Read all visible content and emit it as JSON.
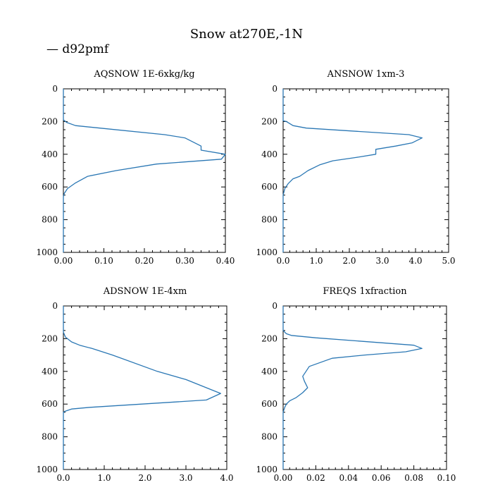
{
  "figure": {
    "title": "Snow at270E,-1N",
    "legend": [
      {
        "label": "— d92pmf",
        "color": "#2a77b4"
      }
    ]
  },
  "chart_data": [
    {
      "type": "line",
      "title": "AQSNOW  1E-6xkg/kg",
      "xlim": [
        0,
        0.4
      ],
      "ylim": [
        0,
        1000
      ],
      "y_inverted": true,
      "xticks": [
        0,
        0.1,
        0.2,
        0.3,
        0.4
      ],
      "xtick_labels": [
        "0.00",
        "0.10",
        "0.20",
        "0.30",
        "0.40"
      ],
      "yticks": [
        0,
        200,
        400,
        600,
        800,
        1000
      ],
      "ytick_labels": [
        "0",
        "200",
        "400",
        "600",
        "800",
        "1000"
      ],
      "series": [
        {
          "name": "d92pmf",
          "color": "#2a77b4",
          "x": [
            0,
            0,
            0.003,
            0.008,
            0.03,
            0.09,
            0.25,
            0.3,
            0.34,
            0.34,
            0.4,
            0.39,
            0.23,
            0.13,
            0.06,
            0.03,
            0.01,
            0.002,
            0,
            0
          ],
          "y": [
            0,
            190,
            195,
            205,
            225,
            240,
            280,
            300,
            350,
            375,
            400,
            430,
            460,
            500,
            535,
            575,
            610,
            640,
            660,
            1000
          ]
        }
      ]
    },
    {
      "type": "line",
      "title": "ANSNOW  1xm-3",
      "xlim": [
        0,
        5
      ],
      "ylim": [
        0,
        1000
      ],
      "y_inverted": true,
      "xticks": [
        0,
        1,
        2,
        3,
        4,
        5
      ],
      "xtick_labels": [
        "0.0",
        "1.0",
        "2.0",
        "3.0",
        "4.0",
        "5.0"
      ],
      "yticks": [
        0,
        200,
        400,
        600,
        800,
        1000
      ],
      "ytick_labels": [
        "0",
        "200",
        "400",
        "600",
        "800",
        "1000"
      ],
      "series": [
        {
          "name": "d92pmf",
          "color": "#2a77b4",
          "x": [
            0,
            0,
            0.1,
            0.3,
            0.7,
            3.8,
            4.2,
            3.9,
            3.4,
            2.8,
            2.8,
            2.2,
            1.5,
            1.1,
            0.75,
            0.5,
            0.3,
            0.15,
            0.05,
            0,
            0
          ],
          "y": [
            0,
            195,
            200,
            225,
            240,
            280,
            300,
            330,
            350,
            370,
            400,
            420,
            440,
            465,
            500,
            535,
            550,
            580,
            610,
            650,
            1000
          ]
        }
      ]
    },
    {
      "type": "line",
      "title": "ADSNOW  1E-4xm",
      "xlim": [
        0,
        4
      ],
      "ylim": [
        0,
        1000
      ],
      "y_inverted": true,
      "xticks": [
        0,
        1,
        2,
        3,
        4
      ],
      "xtick_labels": [
        "0.0",
        "1.0",
        "2.0",
        "3.0",
        "4.0"
      ],
      "yticks": [
        0,
        200,
        400,
        600,
        800,
        1000
      ],
      "ytick_labels": [
        "0",
        "200",
        "400",
        "600",
        "800",
        "1000"
      ],
      "series": [
        {
          "name": "d92pmf",
          "color": "#2a77b4",
          "x": [
            0,
            0,
            0.05,
            0.2,
            0.4,
            0.7,
            1.2,
            2.3,
            3.0,
            3.5,
            3.85,
            3.5,
            0.65,
            0.2,
            0.03,
            0,
            0
          ],
          "y": [
            0,
            160,
            190,
            220,
            240,
            260,
            300,
            400,
            450,
            500,
            535,
            575,
            620,
            630,
            645,
            650,
            1000
          ]
        }
      ]
    },
    {
      "type": "line",
      "title": "FREQS  1xfraction",
      "xlim": [
        0,
        0.1
      ],
      "ylim": [
        0,
        1000
      ],
      "y_inverted": true,
      "xticks": [
        0,
        0.02,
        0.04,
        0.06,
        0.08,
        0.1
      ],
      "xtick_labels": [
        "0.00",
        "0.02",
        "0.04",
        "0.06",
        "0.08",
        "0.10"
      ],
      "yticks": [
        0,
        200,
        400,
        600,
        800,
        1000
      ],
      "ytick_labels": [
        "0",
        "200",
        "400",
        "600",
        "800",
        "1000"
      ],
      "series": [
        {
          "name": "d92pmf",
          "color": "#2a77b4",
          "x": [
            0,
            0,
            0.002,
            0.005,
            0.02,
            0.08,
            0.085,
            0.075,
            0.05,
            0.03,
            0.016,
            0.014,
            0.012,
            0.013,
            0.015,
            0.012,
            0.008,
            0.004,
            0.002,
            0.001,
            0,
            0
          ],
          "y": [
            0,
            150,
            170,
            180,
            195,
            240,
            260,
            280,
            300,
            320,
            370,
            400,
            430,
            460,
            500,
            530,
            560,
            580,
            600,
            620,
            650,
            1000
          ]
        }
      ]
    }
  ]
}
